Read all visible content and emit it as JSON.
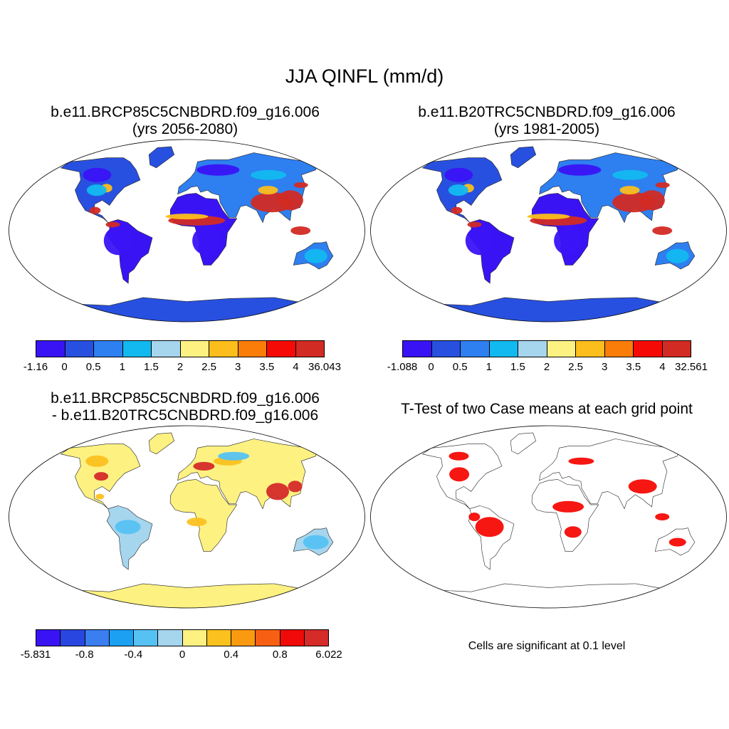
{
  "figure": {
    "title": "JJA QINFL (mm/d)"
  },
  "panels": {
    "p1": {
      "title_line1": "b.e11.BRCP85C5CNBDRD.f09_g16.006",
      "title_line2": "(yrs 2056-2080)",
      "colorbar": {
        "colors": [
          "#3a13f5",
          "#2850e0",
          "#2e7ff0",
          "#12b9f0",
          "#a6d5ee",
          "#fdf182",
          "#fbbe1c",
          "#f97d08",
          "#f50a05",
          "#d22b24"
        ],
        "ticks": [
          "-1.16",
          "0",
          "0.5",
          "1",
          "1.5",
          "2",
          "2.5",
          "3",
          "3.5",
          "4",
          "36.043"
        ]
      }
    },
    "p2": {
      "title_line1": "b.e11.B20TRC5CNBDRD.f09_g16.006",
      "title_line2": "(yrs 1981-2005)",
      "colorbar": {
        "colors": [
          "#3a13f5",
          "#2850e0",
          "#2e7ff0",
          "#12b9f0",
          "#a6d5ee",
          "#fdf182",
          "#fbbe1c",
          "#f97d08",
          "#f50a05",
          "#d22b24"
        ],
        "ticks": [
          "-1.088",
          "0",
          "0.5",
          "1",
          "1.5",
          "2",
          "2.5",
          "3",
          "3.5",
          "4",
          "32.561"
        ]
      }
    },
    "p3": {
      "title_line1": "b.e11.BRCP85C5CNBDRD.f09_g16.006",
      "title_line2": "- b.e11.B20TRC5CNBDRD.f09_g16.006",
      "colorbar": {
        "colors": [
          "#3a13f5",
          "#2a46e0",
          "#3a7ef0",
          "#1ba0f2",
          "#56c2f3",
          "#a6d5ee",
          "#fdf182",
          "#fbc11f",
          "#f99a10",
          "#f76012",
          "#f00a08",
          "#d52b29"
        ],
        "ticks": [
          "-5.831",
          "-0.8",
          "-0.4",
          "0",
          "0.4",
          "0.8",
          "6.022"
        ]
      }
    },
    "p4": {
      "title": "T-Test of two Case means at each grid point",
      "note": "Cells are significant at 0.1 level",
      "sig_color": "#f50a05"
    }
  }
}
